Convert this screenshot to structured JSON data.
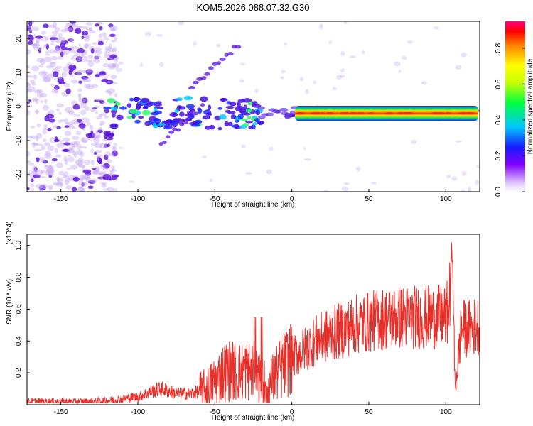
{
  "title": "KOM5.2026.088.07.32.G30",
  "colors": {
    "line": "#e8302a",
    "axis": "#000000",
    "spec_dark": "#5a10d8",
    "spec_light": "#c8aaf4"
  },
  "chart_data": [
    {
      "type": "heatmap",
      "title": "KOM5.2026.088.07.32.G30",
      "xlabel": "Height of straight line (km)",
      "ylabel": "Frequency (Hz)",
      "xlim": [
        -172,
        122
      ],
      "ylim": [
        -25,
        25
      ],
      "xticks": [
        -150,
        -100,
        -50,
        0,
        50,
        100
      ],
      "yticks": [
        -20,
        -10,
        0,
        10,
        20
      ],
      "colorbar": {
        "label": "Normalized spectral amplitude",
        "range": [
          0,
          0.95
        ],
        "ticks": [
          "0.0",
          "0.2",
          "0.4",
          "0.6",
          "0.8"
        ]
      },
      "features": [
        {
          "name": "diffuse noise",
          "x_range": [
            -172,
            -122
          ],
          "f_range": [
            -25,
            25
          ],
          "amplitude": 0.05
        },
        {
          "name": "main band",
          "x_range": [
            -120,
            122
          ],
          "f_center": -2,
          "amplitude": 0.9
        },
        {
          "name": "streak",
          "x": [
            -65,
            -35
          ],
          "f": [
            6,
            18
          ],
          "amplitude": 0.1
        },
        {
          "name": "streak",
          "x": [
            -85,
            -58
          ],
          "f": [
            -11,
            0
          ],
          "amplitude": 0.12
        }
      ]
    },
    {
      "type": "line",
      "xlabel": "Height of straight line (km)",
      "ylabel": "SNR (10 * v/v)",
      "yscale_label": "(x10^4)",
      "xlim": [
        -172,
        122
      ],
      "ylim": [
        0,
        1.07
      ],
      "xticks": [
        -150,
        -100,
        -50,
        0,
        50,
        100
      ],
      "yticks": [
        0.2,
        0.4,
        0.6,
        0.8,
        1.0
      ],
      "series": [
        {
          "name": "SNR",
          "x": [
            -172,
            -150,
            -130,
            -115,
            -100,
            -92,
            -85,
            -75,
            -65,
            -55,
            -50,
            -45,
            -40,
            -35,
            -30,
            -25,
            -20,
            -15,
            -10,
            -5,
            0,
            5,
            10,
            15,
            20,
            30,
            40,
            50,
            60,
            70,
            80,
            90,
            95,
            100,
            102,
            104,
            106,
            110,
            115,
            122
          ],
          "y": [
            0.02,
            0.02,
            0.02,
            0.03,
            0.05,
            0.08,
            0.1,
            0.07,
            0.07,
            0.1,
            0.15,
            0.2,
            0.22,
            0.2,
            0.22,
            0.2,
            0.15,
            0.12,
            0.2,
            0.25,
            0.3,
            0.32,
            0.36,
            0.4,
            0.42,
            0.46,
            0.5,
            0.52,
            0.54,
            0.55,
            0.55,
            0.55,
            0.55,
            0.55,
            0.6,
            0.95,
            0.1,
            0.48,
            0.48,
            0.5
          ]
        }
      ]
    }
  ]
}
